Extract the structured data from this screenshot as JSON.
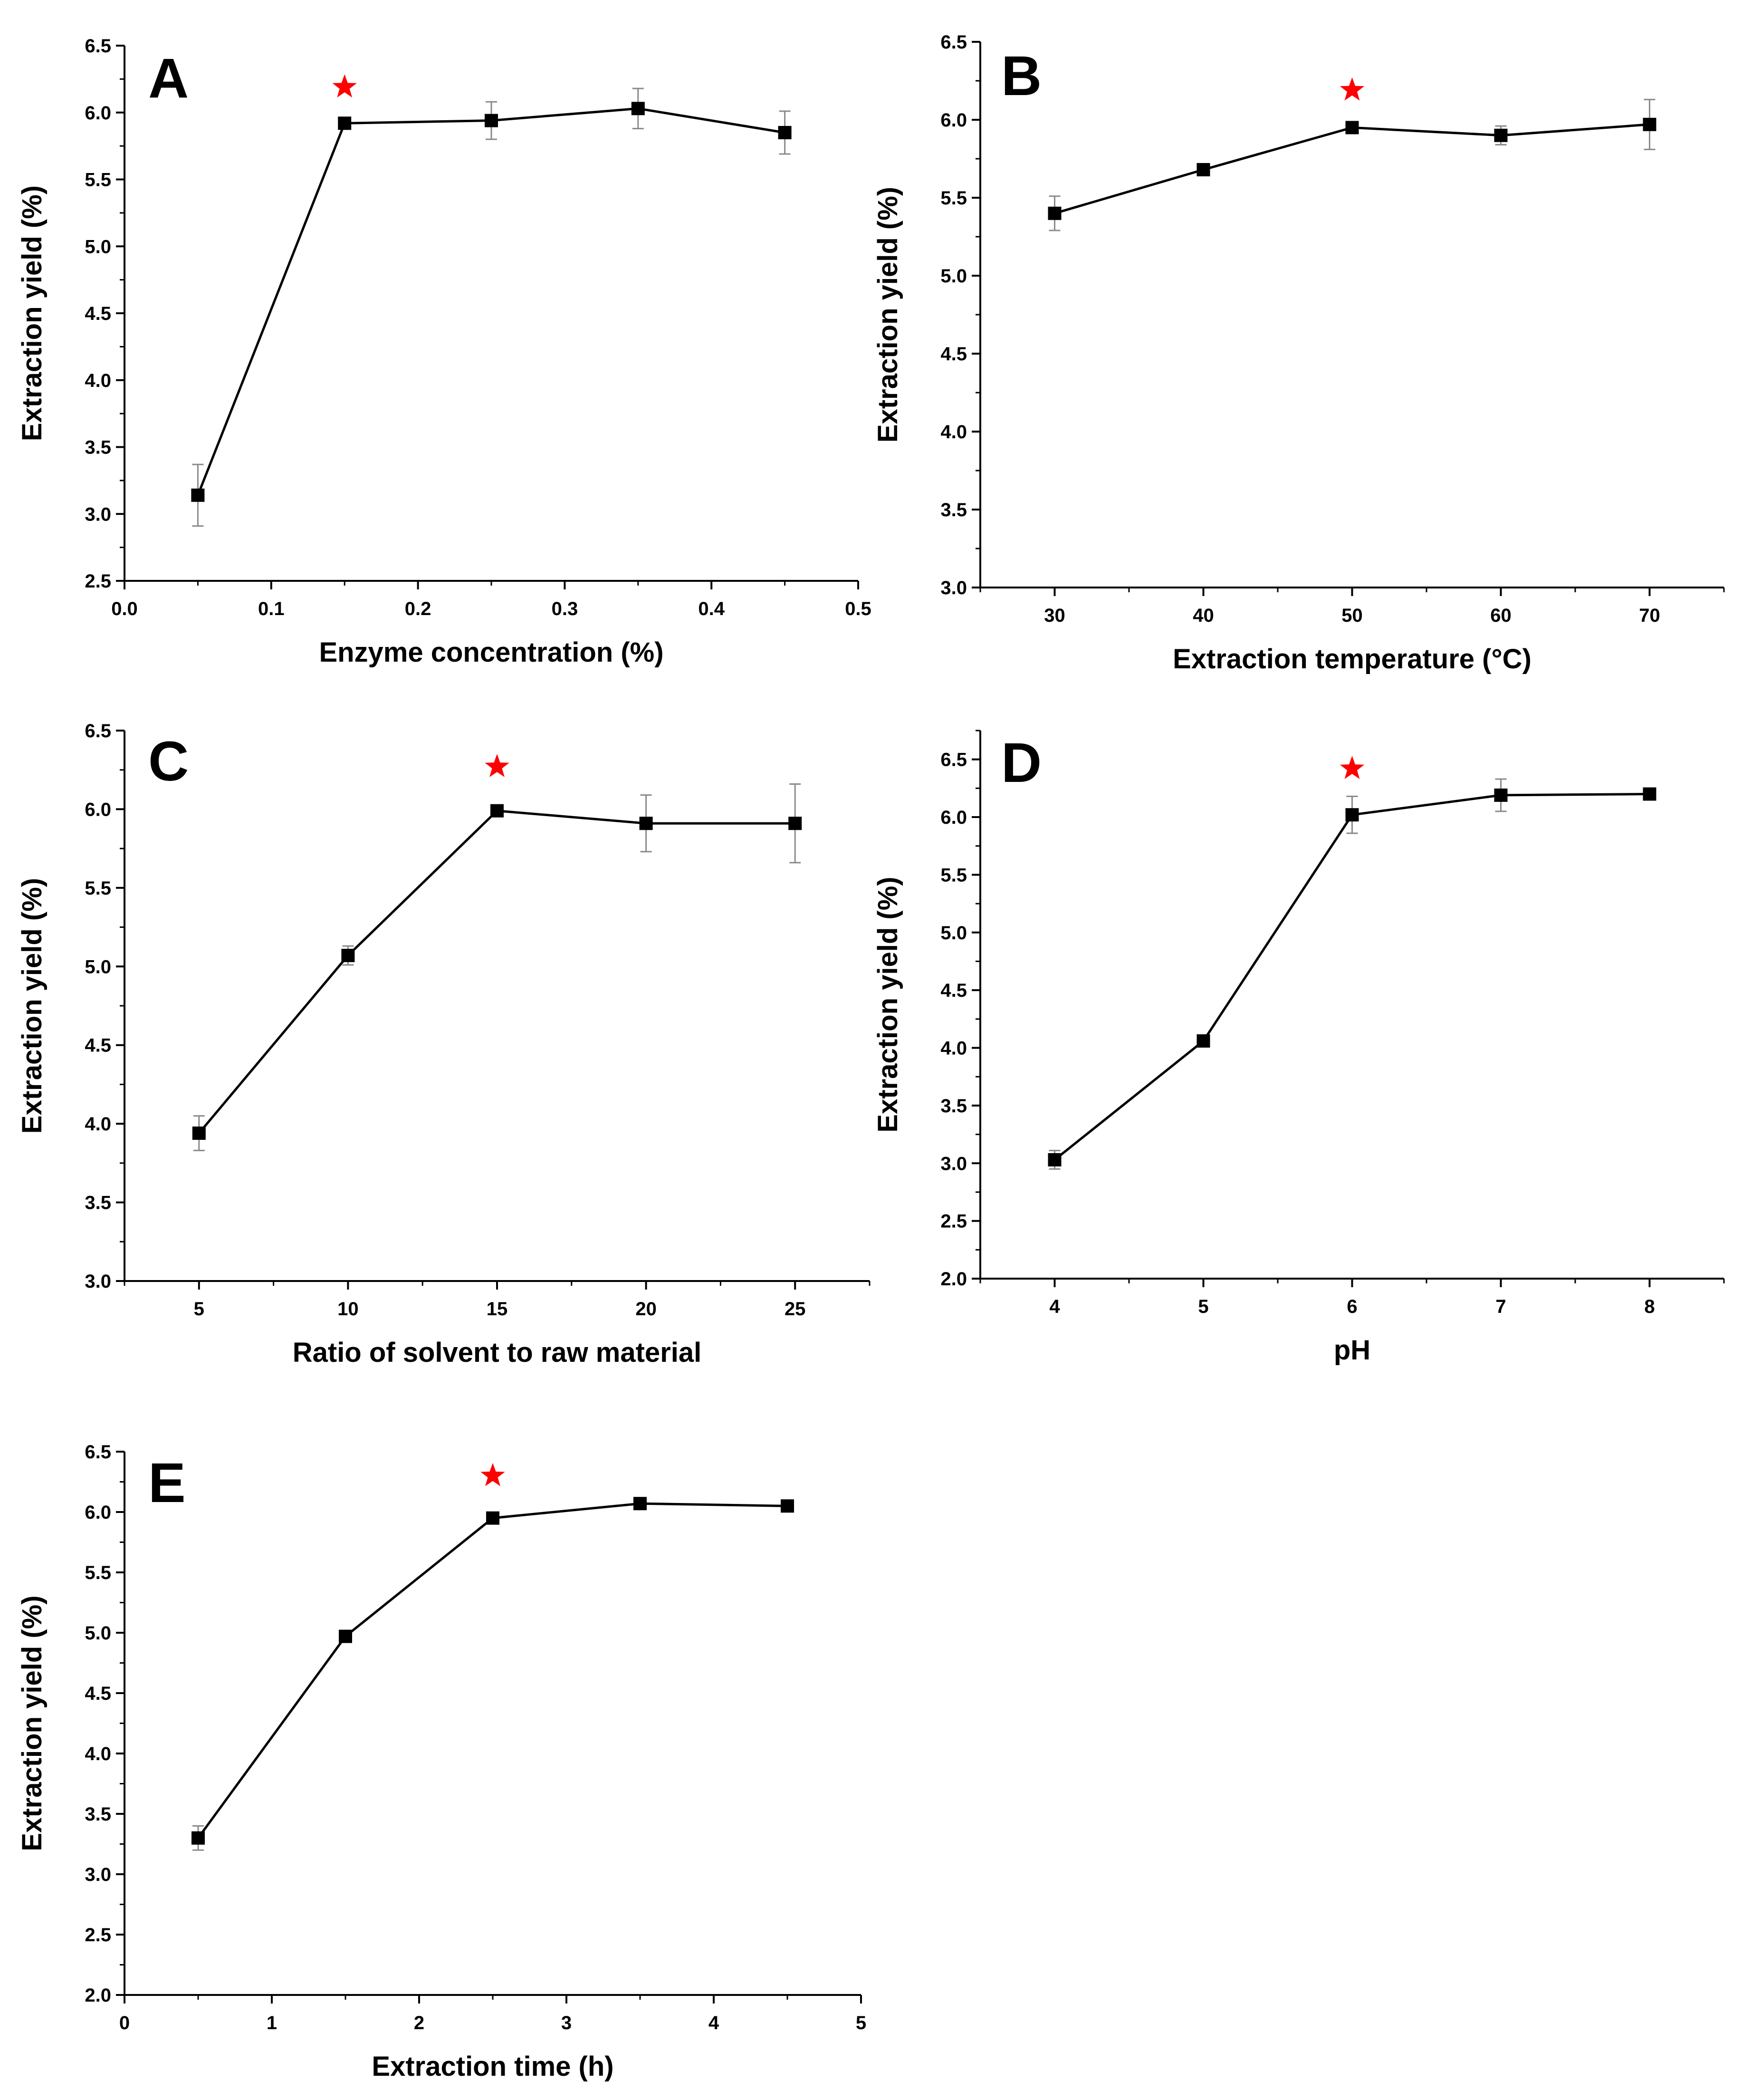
{
  "colors": {
    "line": "#000000",
    "marker": "#000000",
    "error_bar": "#8a8a8a",
    "star": "#ff0000"
  },
  "chart_data": [
    {
      "panel": "A",
      "type": "line",
      "xlabel": "Enzyme concentration (%)",
      "ylabel": "Extraction yield (%)",
      "xlim": [
        0.0,
        0.5
      ],
      "ylim": [
        2.5,
        6.5
      ],
      "xticks": [
        "0.0",
        "0.1",
        "0.2",
        "0.3",
        "0.4",
        "0.5"
      ],
      "yticks": [
        "2.5",
        "3.0",
        "3.5",
        "4.0",
        "4.5",
        "5.0",
        "5.5",
        "6.0",
        "6.5"
      ],
      "x": [
        0.05,
        0.15,
        0.25,
        0.35,
        0.45
      ],
      "y": [
        3.14,
        5.92,
        5.94,
        6.03,
        5.85
      ],
      "error": [
        0.23,
        0.02,
        0.14,
        0.15,
        0.16
      ],
      "optimum_x": 0.15,
      "optimum_marker_y": 6.19
    },
    {
      "panel": "B",
      "type": "line",
      "xlabel": "Extraction temperature (°C)",
      "ylabel": "Extraction yield (%)",
      "xlim": [
        25,
        75
      ],
      "ylim": [
        3.0,
        6.5
      ],
      "xticks": [
        "30",
        "40",
        "50",
        "60",
        "70"
      ],
      "yticks": [
        "3.0",
        "3.5",
        "4.0",
        "4.5",
        "5.0",
        "5.5",
        "6.0",
        "6.5"
      ],
      "x": [
        30,
        40,
        50,
        60,
        70
      ],
      "y": [
        5.4,
        5.68,
        5.95,
        5.9,
        5.97
      ],
      "error": [
        0.11,
        0.02,
        0.02,
        0.06,
        0.16
      ],
      "optimum_x": 50,
      "optimum_marker_y": 6.19
    },
    {
      "panel": "C",
      "type": "line",
      "xlabel": "Ratio of  solvent to raw material",
      "ylabel": "Extraction yield (%)",
      "xlim": [
        2.5,
        27.5
      ],
      "ylim": [
        3.0,
        6.5
      ],
      "xticks": [
        "5",
        "10",
        "15",
        "20",
        "25"
      ],
      "yticks": [
        "3.0",
        "3.5",
        "4.0",
        "4.5",
        "5.0",
        "5.5",
        "6.0",
        "6.5"
      ],
      "x": [
        5,
        10,
        15,
        20,
        25
      ],
      "y": [
        3.94,
        5.07,
        5.99,
        5.91,
        5.91
      ],
      "error": [
        0.11,
        0.06,
        0.02,
        0.18,
        0.25
      ],
      "optimum_x": 15,
      "optimum_marker_y": 6.27
    },
    {
      "panel": "D",
      "type": "line",
      "xlabel": "pH",
      "ylabel": "Extraction yield (%)",
      "xlim": [
        3.5,
        8.5
      ],
      "ylim": [
        2.0,
        6.75
      ],
      "xticks": [
        "4",
        "5",
        "6",
        "7",
        "8"
      ],
      "yticks": [
        "2.0",
        "2.5",
        "3.0",
        "3.5",
        "4.0",
        "4.5",
        "5.0",
        "5.5",
        "6.0",
        "6.5"
      ],
      "x": [
        4,
        5,
        6,
        7,
        8
      ],
      "y": [
        3.03,
        4.06,
        6.02,
        6.19,
        6.2
      ],
      "error": [
        0.08,
        0.02,
        0.16,
        0.14,
        0.02
      ],
      "optimum_x": 6,
      "optimum_marker_y": 6.42
    },
    {
      "panel": "E",
      "type": "line",
      "xlabel": "Extraction time (h)",
      "ylabel": "Extraction yield (%)",
      "xlim": [
        0,
        5
      ],
      "ylim": [
        2.0,
        6.5
      ],
      "xticks": [
        "0",
        "1",
        "2",
        "3",
        "4",
        "5"
      ],
      "yticks": [
        "2.0",
        "2.5",
        "3.0",
        "3.5",
        "4.0",
        "4.5",
        "5.0",
        "5.5",
        "6.0",
        "6.5"
      ],
      "x": [
        0.5,
        1.5,
        2.5,
        3.5,
        4.5
      ],
      "y": [
        3.3,
        4.97,
        5.95,
        6.07,
        6.05
      ],
      "error": [
        0.1,
        0.03,
        0.02,
        0.02,
        0.02
      ],
      "optimum_x": 2.5,
      "optimum_marker_y": 6.3
    }
  ]
}
